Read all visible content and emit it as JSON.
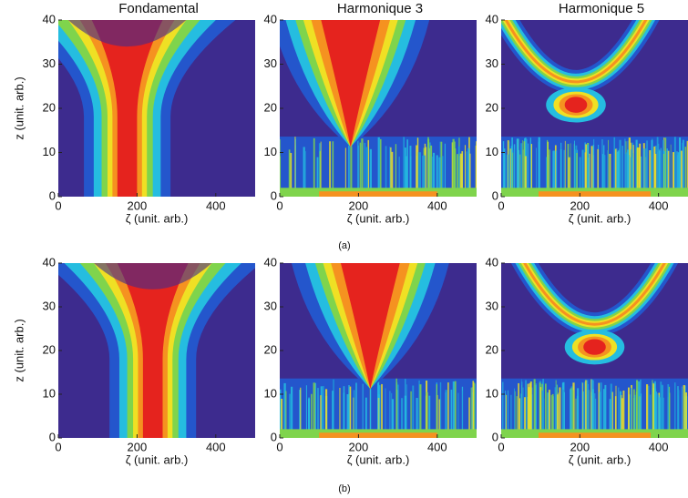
{
  "chart_data": [
    {
      "type": "heatmap",
      "title": "Fondamental",
      "xlabel": "ζ (unit. arb.)",
      "ylabel": "z (unit. arb.)",
      "xlim": [
        0,
        500
      ],
      "ylim": [
        0,
        40
      ],
      "xticks": [
        0,
        200,
        400
      ],
      "yticks": [
        0,
        10,
        20,
        30,
        40
      ]
    },
    {
      "type": "heatmap",
      "title": "Harmonique 3",
      "xlabel": "ζ (unit. arb.)",
      "xlim": [
        0,
        500
      ],
      "ylim": [
        0,
        40
      ],
      "xticks": [
        0,
        200,
        400
      ],
      "yticks": [
        0,
        10,
        20,
        30,
        40
      ]
    },
    {
      "type": "heatmap",
      "title": "Harmonique 5",
      "xlabel": "ζ (unit. arb.)",
      "xlim": [
        0,
        475
      ],
      "ylim": [
        0,
        40
      ],
      "xticks": [
        0,
        200,
        400
      ],
      "yticks": [
        0,
        10,
        20,
        30,
        40
      ]
    },
    {
      "type": "heatmap",
      "xlabel": "ζ (unit. arb.)",
      "ylabel": "z (unit. arb.)",
      "xlim": [
        0,
        500
      ],
      "ylim": [
        0,
        40
      ],
      "xticks": [
        0,
        200,
        400
      ],
      "yticks": [
        0,
        10,
        20,
        30,
        40
      ]
    },
    {
      "type": "heatmap",
      "xlabel": "ζ (unit. arb.)",
      "xlim": [
        0,
        500
      ],
      "ylim": [
        0,
        40
      ],
      "xticks": [
        0,
        200,
        400
      ],
      "yticks": [
        0,
        10,
        20,
        30,
        40
      ]
    },
    {
      "type": "heatmap",
      "xlabel": "ζ (unit. arb.)",
      "xlim": [
        0,
        475
      ],
      "ylim": [
        0,
        40
      ],
      "xticks": [
        0,
        200,
        400
      ],
      "yticks": [
        0,
        10,
        20,
        30,
        40
      ]
    }
  ],
  "captions": [
    "(a)",
    "(b)"
  ]
}
